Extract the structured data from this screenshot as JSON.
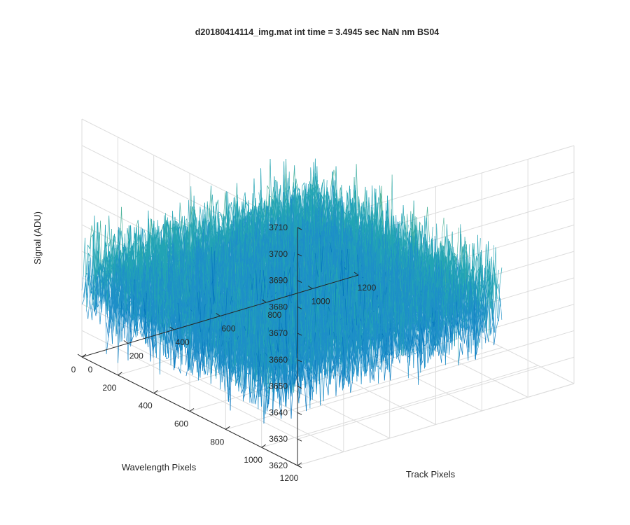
{
  "chart_data": {
    "type": "surface",
    "title": "d20180414114_img.mat int time = 3.4945 sec  NaN nm BS04",
    "xlabel": "Track Pixels",
    "ylabel": "Wavelength Pixels",
    "zlabel": "Signal (ADU)",
    "xlim": [
      0,
      1200
    ],
    "ylim": [
      0,
      1200
    ],
    "zlim": [
      3620,
      3710
    ],
    "x_ticks": [
      "0",
      "200",
      "400",
      "600",
      "800",
      "1000",
      "1200"
    ],
    "y_ticks": [
      "0",
      "200",
      "400",
      "600",
      "800",
      "1000",
      "1200"
    ],
    "z_ticks": [
      "3620",
      "3630",
      "3640",
      "3650",
      "3660",
      "3670",
      "3680",
      "3690",
      "3700",
      "3710"
    ],
    "grid": true,
    "colormap": [
      "#0072bd",
      "#1e8fc8",
      "#23a4b4",
      "#4db39a",
      "#9bbe6a",
      "#e8c840"
    ],
    "data_region": {
      "x": [
        0,
        1024
      ],
      "y": [
        0,
        1024
      ]
    },
    "signal_mean": 3650,
    "signal_spread": [
      3625,
      3700
    ]
  }
}
